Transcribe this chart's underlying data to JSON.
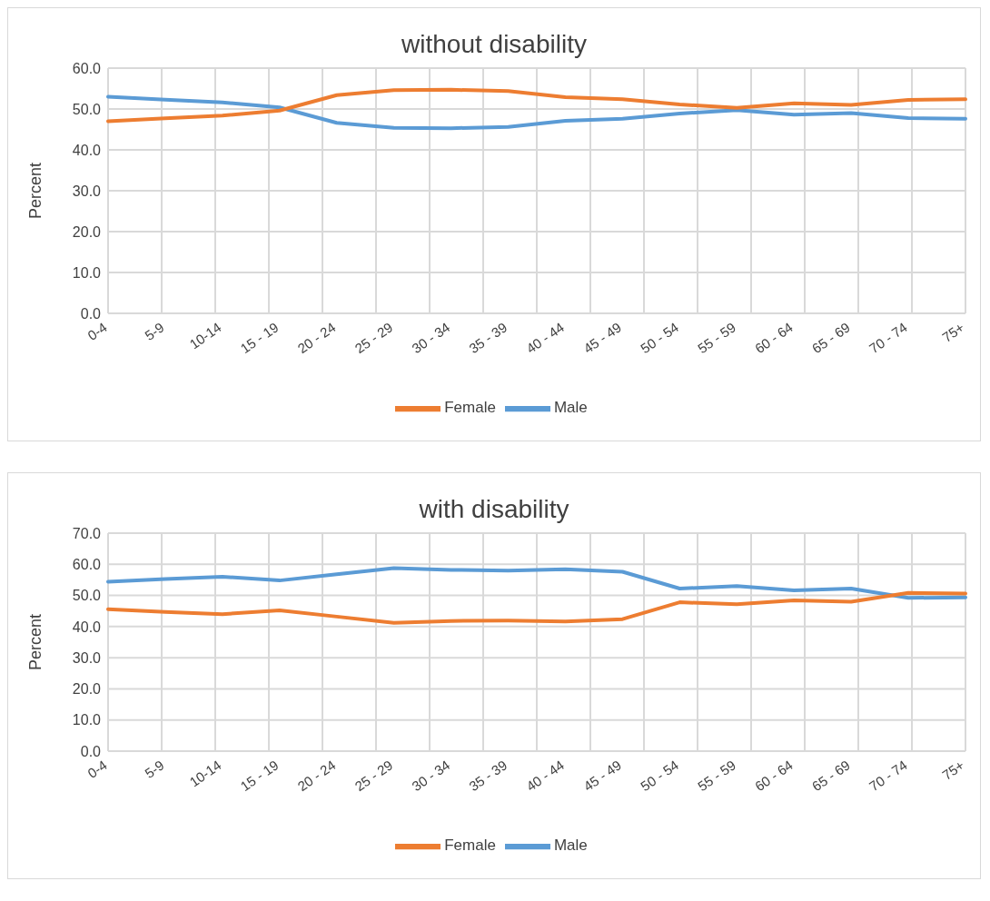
{
  "chart_data": [
    {
      "type": "line",
      "title": "without disability",
      "ylabel": "Percent",
      "categories": [
        "0-4",
        "5-9",
        "10-14",
        "15 - 19",
        "20 - 24",
        "25 - 29",
        "30 - 34",
        "35 - 39",
        "40 - 44",
        "45 - 49",
        "50 - 54",
        "55 - 59",
        "60 - 64",
        "65 - 69",
        "70 - 74",
        "75+"
      ],
      "series": [
        {
          "name": "Male",
          "color": "#5b9bd5",
          "values": [
            53.0,
            52.3,
            51.6,
            50.4,
            46.6,
            45.4,
            45.3,
            45.6,
            47.1,
            47.6,
            48.9,
            49.7,
            48.6,
            49.0,
            47.8,
            47.6
          ]
        },
        {
          "name": "Female",
          "color": "#ed7d31",
          "values": [
            47.0,
            47.7,
            48.4,
            49.6,
            53.4,
            54.6,
            54.7,
            54.4,
            52.9,
            52.4,
            51.1,
            50.3,
            51.4,
            51.0,
            52.2,
            52.4
          ]
        }
      ],
      "ylim": [
        0,
        60
      ],
      "yticks": [
        {
          "value": 0,
          "label": "0.0"
        },
        {
          "value": 10,
          "label": "10.0"
        },
        {
          "value": 20,
          "label": "20.0"
        },
        {
          "value": 30,
          "label": "30.0"
        },
        {
          "value": 40,
          "label": "40.0"
        },
        {
          "value": 50,
          "label": "50.0"
        },
        {
          "value": 60,
          "label": "60.0"
        }
      ],
      "grid": true,
      "legend": "bottom",
      "marker": "none",
      "line_style": "solid"
    },
    {
      "type": "line",
      "title": "with disability",
      "ylabel": "Percent",
      "categories": [
        "0-4",
        "5-9",
        "10-14",
        "15 - 19",
        "20 - 24",
        "25 - 29",
        "30 - 34",
        "35 - 39",
        "40 - 44",
        "45 - 49",
        "50 - 54",
        "55 - 59",
        "60 - 64",
        "65 - 69",
        "70 - 74",
        "75+"
      ],
      "series": [
        {
          "name": "Male",
          "color": "#5b9bd5",
          "values": [
            54.4,
            55.3,
            56.0,
            54.8,
            56.8,
            58.8,
            58.2,
            58.0,
            58.4,
            57.6,
            52.2,
            53.0,
            51.6,
            52.2,
            49.2,
            49.4
          ]
        },
        {
          "name": "Female",
          "color": "#ed7d31",
          "values": [
            45.6,
            44.7,
            44.0,
            45.2,
            43.2,
            41.2,
            41.8,
            41.9,
            41.6,
            42.4,
            47.8,
            47.2,
            48.4,
            48.0,
            50.8,
            50.6
          ]
        }
      ],
      "ylim": [
        0,
        70
      ],
      "yticks": [
        {
          "value": 0,
          "label": "0.0"
        },
        {
          "value": 10,
          "label": "10.0"
        },
        {
          "value": 20,
          "label": "20.0"
        },
        {
          "value": 30,
          "label": "30.0"
        },
        {
          "value": 40,
          "label": "40.0"
        },
        {
          "value": 50,
          "label": "50.0"
        },
        {
          "value": 60,
          "label": "60.0"
        },
        {
          "value": 70,
          "label": "70.0"
        }
      ],
      "grid": true,
      "legend": "bottom",
      "marker": "none",
      "line_style": "solid"
    }
  ]
}
